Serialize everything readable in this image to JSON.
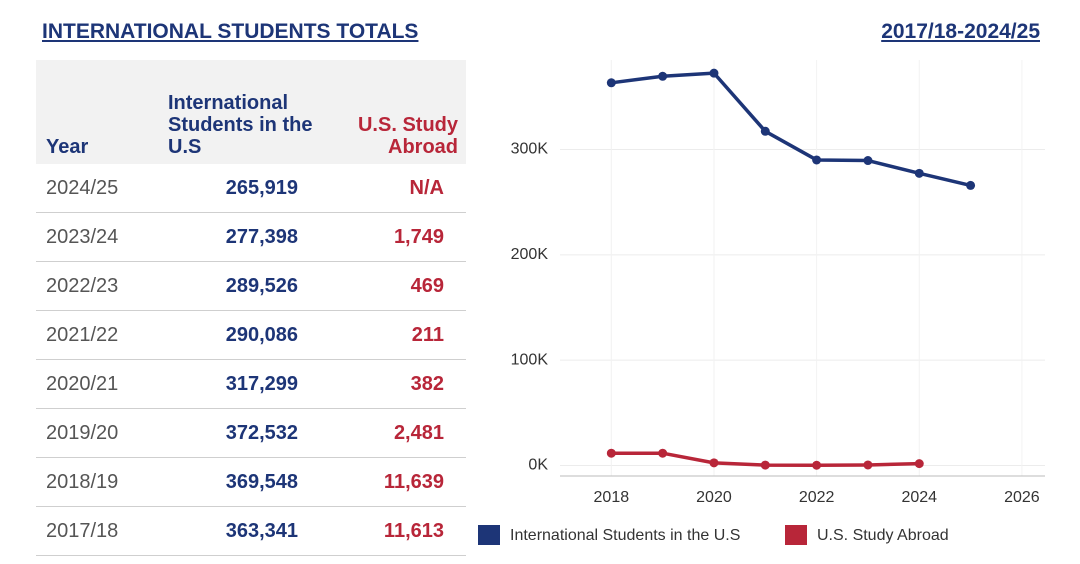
{
  "header": {
    "title": "INTERNATIONAL STUDENTS TOTALS",
    "range": "2017/18-2024/25"
  },
  "table": {
    "columns": [
      "Year",
      "International Students in the U.S",
      "U.S. Study Abroad"
    ],
    "rows": [
      [
        "2024/25",
        "265,919",
        "N/A"
      ],
      [
        "2023/24",
        "277,398",
        "1,749"
      ],
      [
        "2022/23",
        "289,526",
        "469"
      ],
      [
        "2021/22",
        "290,086",
        "211"
      ],
      [
        "2020/21",
        "317,299",
        "382"
      ],
      [
        "2019/20",
        "372,532",
        "2,481"
      ],
      [
        "2018/19",
        "369,548",
        "11,639"
      ],
      [
        "2017/18",
        "363,341",
        "11,613"
      ]
    ]
  },
  "chart_data": {
    "type": "line",
    "x": [
      2018,
      2019,
      2020,
      2021,
      2022,
      2023,
      2024,
      2025
    ],
    "series": [
      {
        "name": "International Students in the U.S",
        "color": "#1d3577",
        "values": [
          363341,
          369548,
          372532,
          317299,
          290086,
          289526,
          277398,
          265919
        ]
      },
      {
        "name": "U.S. Study Abroad",
        "color": "#b82639",
        "values": [
          11613,
          11639,
          2481,
          382,
          211,
          469,
          1749,
          null
        ]
      }
    ],
    "xlim": [
      2017,
      2026.45
    ],
    "xticks": [
      2018,
      2020,
      2022,
      2024,
      2026
    ],
    "ylim": [
      -10000,
      385000
    ],
    "yticks": [
      {
        "value": 0,
        "label": "0K"
      },
      {
        "value": 100000,
        "label": "100K"
      },
      {
        "value": 200000,
        "label": "200K"
      },
      {
        "value": 300000,
        "label": "300K"
      }
    ],
    "grid": true,
    "legend": "bottom"
  }
}
